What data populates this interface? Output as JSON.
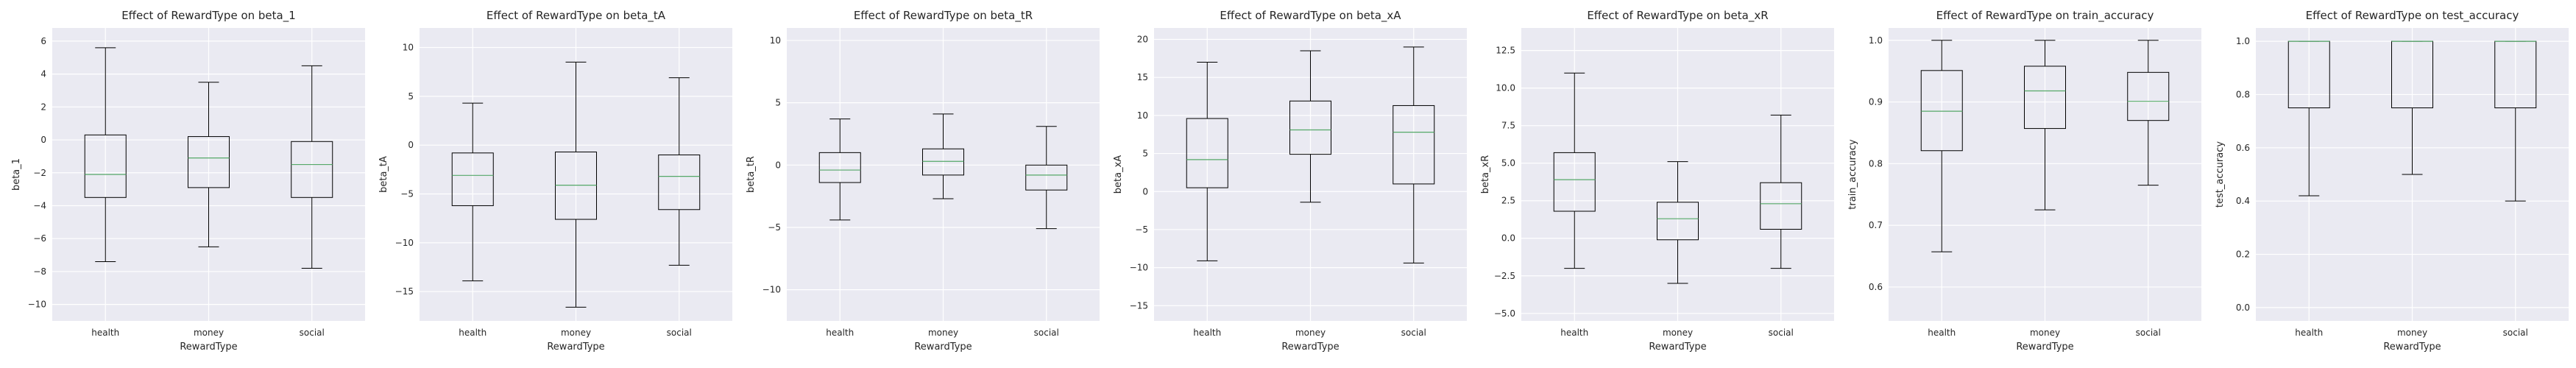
{
  "chart_data": [
    {
      "type": "box",
      "title": "Effect of RewardType on beta_1",
      "xlabel": "RewardType",
      "ylabel": "beta_1",
      "categories": [
        "health",
        "money",
        "social"
      ],
      "ylim": [
        -11,
        6.8
      ],
      "yticks": [
        6,
        4,
        2,
        0,
        -2,
        -4,
        -6,
        -8,
        -10
      ],
      "grid": true,
      "series": [
        {
          "category": "health",
          "whisker_low": -7.4,
          "q1": -3.5,
          "median": -2.1,
          "q3": 0.3,
          "whisker_high": 5.6
        },
        {
          "category": "money",
          "whisker_low": -6.5,
          "q1": -2.9,
          "median": -1.1,
          "q3": 0.2,
          "whisker_high": 3.5
        },
        {
          "category": "social",
          "whisker_low": -7.8,
          "q1": -3.5,
          "median": -1.5,
          "q3": -0.1,
          "whisker_high": 4.5
        }
      ]
    },
    {
      "type": "box",
      "title": "Effect of RewardType on beta_tA",
      "xlabel": "RewardType",
      "ylabel": "beta_tA",
      "categories": [
        "health",
        "money",
        "social"
      ],
      "ylim": [
        -18,
        12
      ],
      "yticks": [
        10,
        5,
        0,
        -5,
        -10,
        -15
      ],
      "grid": true,
      "series": [
        {
          "category": "health",
          "whisker_low": -13.9,
          "q1": -6.2,
          "median": -3.1,
          "q3": -0.8,
          "whisker_high": 4.3
        },
        {
          "category": "money",
          "whisker_low": -16.6,
          "q1": -7.6,
          "median": -4.1,
          "q3": -0.7,
          "whisker_high": 8.5
        },
        {
          "category": "social",
          "whisker_low": -12.3,
          "q1": -6.6,
          "median": -3.2,
          "q3": -1.0,
          "whisker_high": 6.9
        }
      ]
    },
    {
      "type": "box",
      "title": "Effect of RewardType on beta_tR",
      "xlabel": "RewardType",
      "ylabel": "beta_tR",
      "categories": [
        "health",
        "money",
        "social"
      ],
      "ylim": [
        -12.5,
        11
      ],
      "yticks": [
        10,
        5,
        0,
        -5,
        -10
      ],
      "grid": true,
      "series": [
        {
          "category": "health",
          "whisker_low": -4.4,
          "q1": -1.4,
          "median": -0.4,
          "q3": 1.0,
          "whisker_high": 3.7
        },
        {
          "category": "money",
          "whisker_low": -2.7,
          "q1": -0.8,
          "median": 0.3,
          "q3": 1.3,
          "whisker_high": 4.1
        },
        {
          "category": "social",
          "whisker_low": -5.1,
          "q1": -2.0,
          "median": -0.8,
          "q3": 0.0,
          "whisker_high": 3.1
        }
      ]
    },
    {
      "type": "box",
      "title": "Effect of RewardType on beta_xA",
      "xlabel": "RewardType",
      "ylabel": "beta_xA",
      "categories": [
        "health",
        "money",
        "social"
      ],
      "ylim": [
        -17,
        21.5
      ],
      "yticks": [
        20,
        15,
        10,
        5,
        0,
        -5,
        -10,
        -15
      ],
      "grid": true,
      "series": [
        {
          "category": "health",
          "whisker_low": -9.1,
          "q1": 0.5,
          "median": 4.2,
          "q3": 9.6,
          "whisker_high": 17.0
        },
        {
          "category": "money",
          "whisker_low": -1.4,
          "q1": 4.9,
          "median": 8.1,
          "q3": 11.9,
          "whisker_high": 18.5
        },
        {
          "category": "social",
          "whisker_low": -9.4,
          "q1": 1.0,
          "median": 7.8,
          "q3": 11.3,
          "whisker_high": 19.0
        }
      ]
    },
    {
      "type": "box",
      "title": "Effect of RewardType on beta_xR",
      "xlabel": "RewardType",
      "ylabel": "beta_xR",
      "categories": [
        "health",
        "money",
        "social"
      ],
      "ylim": [
        -5.5,
        14
      ],
      "yticks": [
        12.5,
        10.0,
        7.5,
        5.0,
        2.5,
        0.0,
        -2.5,
        -5.0
      ],
      "grid": true,
      "series": [
        {
          "category": "health",
          "whisker_low": -2.0,
          "q1": 1.8,
          "median": 3.9,
          "q3": 5.7,
          "whisker_high": 11.0
        },
        {
          "category": "money",
          "whisker_low": -3.0,
          "q1": -0.1,
          "median": 1.3,
          "q3": 2.4,
          "whisker_high": 5.1
        },
        {
          "category": "social",
          "whisker_low": -2.0,
          "q1": 0.6,
          "median": 2.3,
          "q3": 3.7,
          "whisker_high": 8.2
        }
      ]
    },
    {
      "type": "box",
      "title": "Effect of RewardType on train_accuracy",
      "xlabel": "RewardType",
      "ylabel": "train_accuracy",
      "categories": [
        "health",
        "money",
        "social"
      ],
      "ylim": [
        0.545,
        1.02
      ],
      "yticks": [
        1.0,
        0.9,
        0.8,
        0.7,
        0.6
      ],
      "grid": true,
      "series": [
        {
          "category": "health",
          "whisker_low": 0.657,
          "q1": 0.821,
          "median": 0.885,
          "q3": 0.951,
          "whisker_high": 1.0
        },
        {
          "category": "money",
          "whisker_low": 0.725,
          "q1": 0.857,
          "median": 0.918,
          "q3": 0.958,
          "whisker_high": 1.0
        },
        {
          "category": "social",
          "whisker_low": 0.765,
          "q1": 0.87,
          "median": 0.901,
          "q3": 0.948,
          "whisker_high": 1.0
        }
      ]
    },
    {
      "type": "box",
      "title": "Effect of RewardType on test_accuracy",
      "xlabel": "RewardType",
      "ylabel": "test_accuracy",
      "categories": [
        "health",
        "money",
        "social"
      ],
      "ylim": [
        -0.05,
        1.05
      ],
      "yticks": [
        1.0,
        0.8,
        0.6,
        0.4,
        0.2,
        0.0
      ],
      "grid": true,
      "series": [
        {
          "category": "health",
          "whisker_low": 0.42,
          "q1": 0.75,
          "median": 1.0,
          "q3": 1.0,
          "whisker_high": 1.0
        },
        {
          "category": "money",
          "whisker_low": 0.5,
          "q1": 0.75,
          "median": 1.0,
          "q3": 1.0,
          "whisker_high": 1.0
        },
        {
          "category": "social",
          "whisker_low": 0.4,
          "q1": 0.75,
          "median": 1.0,
          "q3": 1.0,
          "whisker_high": 1.0
        }
      ]
    }
  ],
  "colors": {
    "plot_background": "#eaeaf2",
    "grid": "#ffffff",
    "box_edge": "#000000",
    "median": "#55a868",
    "text": "#262626"
  }
}
